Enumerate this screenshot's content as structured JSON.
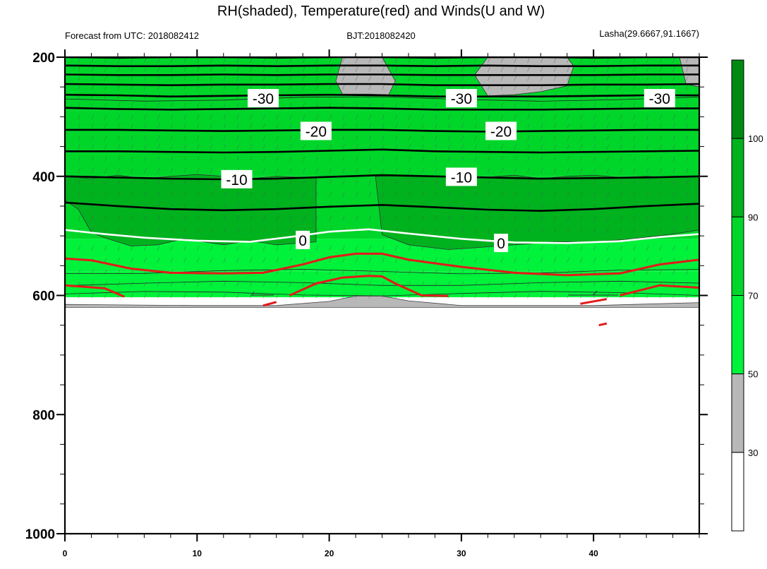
{
  "chart_data": {
    "type": "contour",
    "title": "RH(shaded), Temperature(red) and Winds(U and W)",
    "subtitle_left": "Forecast from UTC: 2018082412",
    "subtitle_center": "BJT:2018082420",
    "subtitle_right": "Lasha(29.6667,91.1667)",
    "x_range": [
      0,
      48
    ],
    "x_ticks": [
      "0",
      "10",
      "20",
      "30",
      "40"
    ],
    "x_tick_values": [
      0,
      10,
      20,
      30,
      40
    ],
    "y_range": [
      200,
      1000
    ],
    "y_ticks": [
      "200",
      "400",
      "600",
      "800",
      "1000"
    ],
    "y_tick_values": [
      200,
      400,
      600,
      800,
      1000
    ],
    "colorbar": {
      "levels": [
        "30",
        "50",
        "70",
        "90",
        "100"
      ],
      "level_values": [
        30,
        50,
        70,
        90,
        100
      ],
      "colors": [
        "#ffffff",
        "#b8b8b8",
        "#00f23a",
        "#00d62a",
        "#00b21e",
        "#008a12"
      ]
    },
    "temperature_labels": [
      {
        "text": "-30",
        "x": 15,
        "p": 270
      },
      {
        "text": "-30",
        "x": 30,
        "p": 270
      },
      {
        "text": "-30",
        "x": 45,
        "p": 270
      },
      {
        "text": "-20",
        "x": 19,
        "p": 325
      },
      {
        "text": "-20",
        "x": 33,
        "p": 325
      },
      {
        "text": "-10",
        "x": 13,
        "p": 406
      },
      {
        "text": "-10",
        "x": 30,
        "p": 402
      },
      {
        "text": "0",
        "x": 18,
        "p": 508
      },
      {
        "text": "0",
        "x": 33,
        "p": 513
      }
    ],
    "temperature_isotherms": [
      {
        "x": [
          0,
          4,
          8,
          12,
          16,
          20,
          24,
          28,
          32,
          36,
          40,
          44,
          48
        ],
        "p": [
          200,
          201,
          200,
          200,
          201,
          200,
          200,
          201,
          200,
          200,
          201,
          200,
          200
        ]
      },
      {
        "x": [
          0,
          4,
          8,
          12,
          16,
          20,
          24,
          28,
          32,
          36,
          40,
          44,
          48
        ],
        "p": [
          214,
          215,
          215,
          214,
          215,
          214,
          214,
          215,
          214,
          215,
          215,
          214,
          214
        ]
      },
      {
        "x": [
          0,
          4,
          8,
          12,
          16,
          20,
          24,
          28,
          32,
          36,
          40,
          44,
          48
        ],
        "p": [
          229,
          230,
          230,
          229,
          230,
          229,
          229,
          230,
          230,
          230,
          230,
          229,
          229
        ]
      },
      {
        "x": [
          0,
          4,
          8,
          12,
          16,
          20,
          24,
          28,
          32,
          36,
          40,
          44,
          48
        ],
        "p": [
          245,
          246,
          247,
          246,
          246,
          245,
          245,
          247,
          247,
          247,
          246,
          246,
          245
        ]
      },
      {
        "x": [
          0,
          4,
          8,
          12,
          16,
          20,
          24,
          28,
          32,
          36,
          40,
          44,
          48
        ],
        "p": [
          263,
          264,
          266,
          265,
          264,
          263,
          264,
          266,
          266,
          266,
          265,
          264,
          264
        ]
      },
      {
        "x": [
          0,
          4,
          8,
          12,
          16,
          20,
          24,
          28,
          32,
          36,
          40,
          44,
          48
        ],
        "p": [
          285,
          287,
          288,
          287,
          286,
          285,
          286,
          288,
          288,
          288,
          287,
          286,
          286
        ]
      },
      {
        "x": [
          0,
          4,
          8,
          12,
          16,
          20,
          24,
          28,
          32,
          36,
          40,
          44,
          48
        ],
        "p": [
          322,
          322,
          323,
          324,
          323,
          322,
          322,
          324,
          325,
          324,
          323,
          322,
          322
        ]
      },
      {
        "x": [
          0,
          4,
          8,
          12,
          16,
          20,
          24,
          28,
          32,
          36,
          40,
          44,
          48
        ],
        "p": [
          358,
          358,
          359,
          360,
          359,
          357,
          355,
          358,
          359,
          360,
          359,
          358,
          357
        ]
      },
      {
        "x": [
          0,
          4,
          8,
          12,
          16,
          20,
          24,
          28,
          32,
          36,
          40,
          44,
          48
        ],
        "p": [
          400,
          402,
          404,
          405,
          404,
          401,
          398,
          400,
          402,
          404,
          403,
          402,
          400
        ]
      },
      {
        "x": [
          0,
          4,
          8,
          12,
          16,
          20,
          24,
          28,
          32,
          36,
          40,
          44,
          48
        ],
        "p": [
          444,
          450,
          455,
          457,
          455,
          451,
          448,
          452,
          456,
          458,
          455,
          450,
          446
        ]
      }
    ],
    "zero_isotherm": {
      "x": [
        0,
        3,
        6,
        10,
        14,
        17,
        20,
        23,
        26,
        30,
        34,
        38,
        42,
        45,
        48
      ],
      "p": [
        490,
        497,
        503,
        508,
        510,
        502,
        493,
        489,
        496,
        505,
        511,
        512,
        509,
        502,
        497
      ]
    },
    "red_isotherms": [
      {
        "x": [
          0,
          2,
          5,
          8,
          12,
          15,
          18,
          20,
          22,
          24,
          26,
          30,
          34,
          38,
          42,
          45,
          48
        ],
        "p": [
          538,
          541,
          555,
          562,
          563,
          562,
          548,
          536,
          530,
          530,
          540,
          552,
          562,
          566,
          563,
          548,
          540
        ]
      },
      {
        "x": [
          0,
          3,
          4.5
        ],
        "p": [
          583,
          588,
          602
        ]
      },
      {
        "x": [
          17,
          19,
          21,
          23,
          24,
          25,
          27,
          29
        ],
        "p": [
          600,
          580,
          570,
          567,
          568,
          580,
          600,
          601
        ]
      },
      {
        "x": [
          42,
          45,
          48
        ],
        "p": [
          600,
          583,
          587
        ]
      },
      {
        "x": [
          15,
          16
        ],
        "p": [
          617,
          611
        ]
      },
      {
        "x": [
          39,
          41
        ],
        "p": [
          614,
          606
        ]
      },
      {
        "x": [
          40.4,
          41
        ],
        "p": [
          650,
          647
        ]
      }
    ],
    "rh_regions": {
      "gray_top": [
        {
          "x": [
            21,
            22,
            24,
            25,
            24.5,
            23,
            21,
            20.5
          ],
          "p": [
            200,
            200,
            200,
            240,
            263,
            262,
            262,
            240
          ]
        },
        {
          "x": [
            32,
            38,
            38.5,
            38,
            36,
            34,
            32,
            31
          ],
          "p": [
            200,
            200,
            215,
            248,
            258,
            263,
            265,
            230
          ]
        },
        {
          "x": [
            46.5,
            48,
            48,
            47
          ],
          "p": [
            200,
            200,
            250,
            245
          ]
        }
      ],
      "dark_band": [
        {
          "x": [
            0,
            1,
            2,
            4,
            6,
            8,
            10,
            12,
            14,
            16,
            19,
            19,
            16,
            14,
            12,
            9,
            7,
            5,
            3,
            2,
            1,
            0
          ],
          "p": [
            400,
            402,
            404,
            398,
            404,
            400,
            397,
            400,
            404,
            400,
            403,
            510,
            515,
            508,
            515,
            505,
            515,
            517,
            503,
            494,
            455,
            440
          ]
        },
        {
          "x": [
            23.5,
            26,
            29,
            31,
            34,
            36,
            38,
            40,
            42,
            44,
            46,
            48,
            48,
            46,
            43,
            40,
            37,
            34,
            31,
            29,
            26,
            24
          ],
          "p": [
            400,
            398,
            401,
            403,
            398,
            404,
            400,
            398,
            402,
            400,
            402,
            400,
            490,
            497,
            505,
            510,
            510,
            515,
            520,
            523,
            515,
            498
          ]
        }
      ]
    }
  }
}
